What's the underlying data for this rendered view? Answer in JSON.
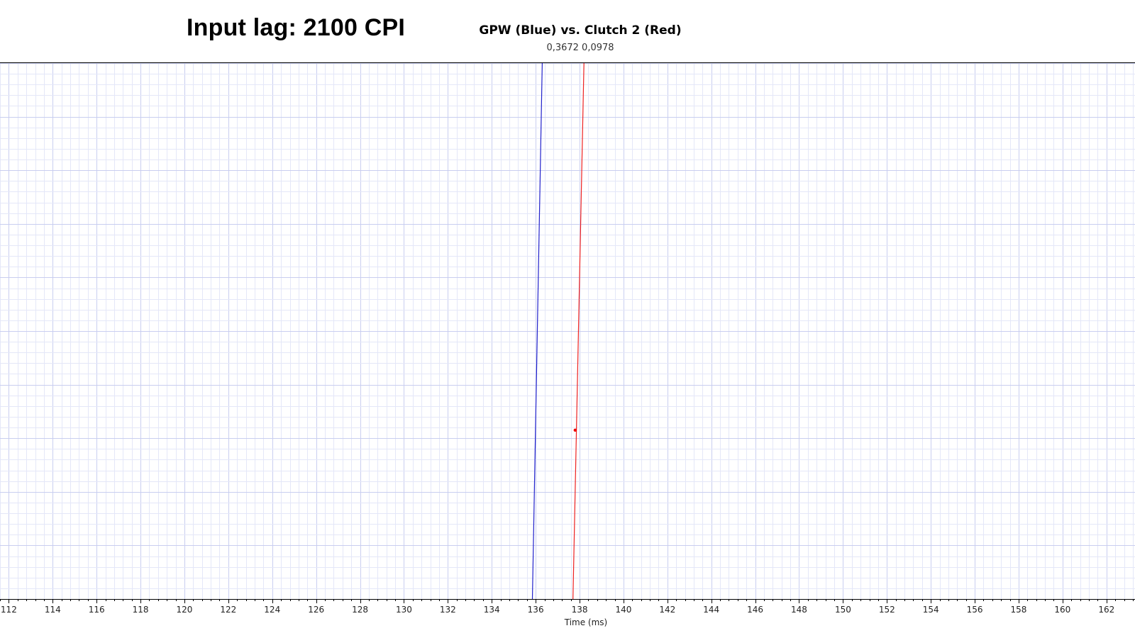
{
  "overlay_title": "Input lag: 2100 CPI",
  "readout": "0,3672 0,0978",
  "chart_data": {
    "type": "line",
    "title": "GPW (Blue) vs. Clutch 2 (Red)",
    "xlabel": "Time (ms)",
    "ylabel": "",
    "xlim": [
      111.6,
      163.3
    ],
    "ylim": [
      0,
      1
    ],
    "x_ticks": [
      112,
      114,
      116,
      118,
      120,
      122,
      124,
      126,
      128,
      130,
      132,
      134,
      136,
      138,
      140,
      142,
      144,
      146,
      148,
      150,
      152,
      154,
      156,
      158,
      160,
      162
    ],
    "x_tick_labels": [
      "112",
      "114",
      "116",
      "118",
      "120",
      "122",
      "124",
      "126",
      "128",
      "130",
      "132",
      "134",
      "136",
      "138",
      "140",
      "142",
      "144",
      "146",
      "148",
      "150",
      "152",
      "154",
      "156",
      "158",
      "160",
      "162"
    ],
    "grid": true,
    "legend": "none",
    "series": [
      {
        "name": "GPW",
        "color": "#2222cc",
        "x": [
          135.85,
          136.3
        ],
        "y": [
          0,
          1
        ]
      },
      {
        "name": "Clutch 2",
        "color": "#ee2222",
        "x": [
          137.7,
          138.2
        ],
        "y": [
          0,
          1
        ]
      }
    ],
    "marker": {
      "series": "Clutch 2",
      "x": 137.8,
      "y": 0.315,
      "color": "#ee0000"
    }
  },
  "colors": {
    "grid_major": "#c9cef0",
    "grid_minor": "#e4e7f8",
    "axis": "#000000"
  }
}
